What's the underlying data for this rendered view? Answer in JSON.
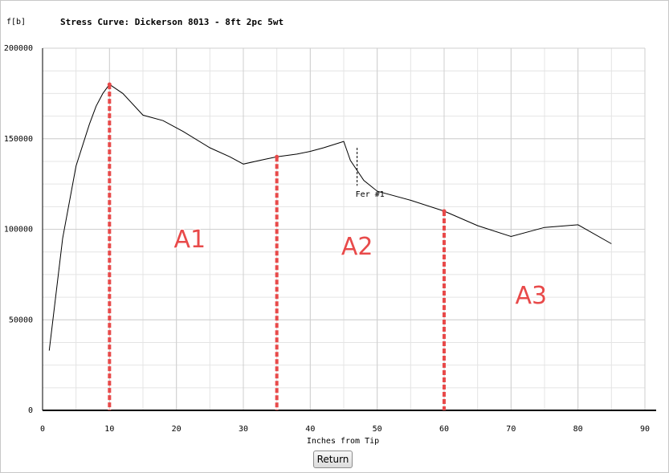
{
  "header": {
    "unit_label": "f[b]",
    "title": "Stress Curve: Dickerson 8013 - 8ft 2pc 5wt"
  },
  "return_label": "Return",
  "colors": {
    "grid": "#cfcfcf",
    "curve": "#000000",
    "marker_line": "#e84a4a",
    "area_label": "#e84a4a"
  },
  "chart_data": {
    "type": "line",
    "title": "Stress Curve: Dickerson 8013 - 8ft 2pc 5wt",
    "xlabel": "Inches from Tip",
    "ylabel": "f[b]",
    "xlim": [
      0,
      90
    ],
    "ylim": [
      0,
      200000
    ],
    "x_ticks": [
      0,
      10,
      20,
      30,
      40,
      50,
      60,
      70,
      80,
      90
    ],
    "y_ticks": [
      0,
      50000,
      100000,
      150000,
      200000
    ],
    "grid": true,
    "series": [
      {
        "x": [
          1,
          3,
          5,
          7,
          8,
          9,
          10,
          12,
          15,
          18,
          21,
          25,
          28,
          30,
          33,
          35,
          38,
          40,
          42,
          45,
          46,
          48,
          50,
          55,
          60,
          65,
          70,
          75,
          80,
          85
        ],
        "y": [
          33000,
          95000,
          135000,
          158000,
          168000,
          175000,
          180000,
          175000,
          163000,
          160000,
          154000,
          145000,
          140000,
          136000,
          138500,
          140000,
          141500,
          143000,
          145000,
          148500,
          138000,
          127000,
          121000,
          116000,
          110000,
          102000,
          96000,
          101000,
          102500,
          92000
        ]
      }
    ],
    "markers": [
      {
        "x": 10,
        "y": 180000
      },
      {
        "x": 35,
        "y": 140000
      },
      {
        "x": 60,
        "y": 110000
      }
    ],
    "ferrule": {
      "label": "Fer #1",
      "x": 47
    },
    "area_labels": [
      {
        "text": "A1",
        "x": 22,
        "y": 90000
      },
      {
        "text": "A2",
        "x": 47,
        "y": 86000
      },
      {
        "text": "A3",
        "x": 73,
        "y": 59000
      }
    ]
  }
}
